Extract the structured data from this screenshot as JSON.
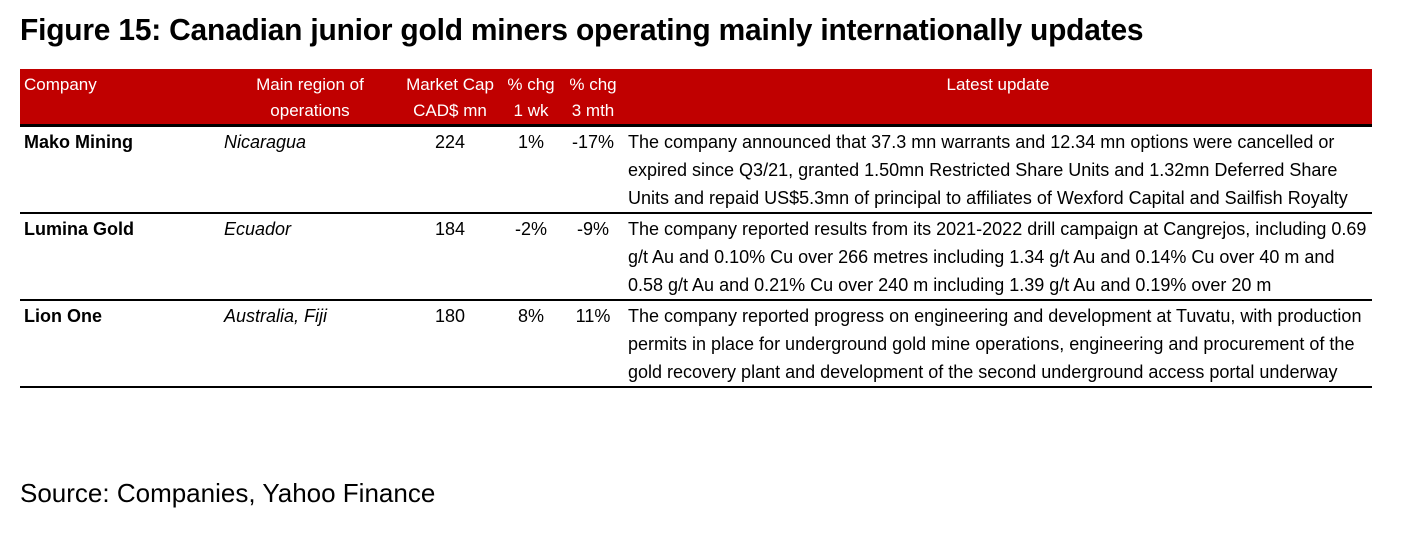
{
  "title": "Figure 15: Canadian junior gold miners operating mainly internationally updates",
  "colors": {
    "header_background": "#c00000",
    "header_text": "#ffffff",
    "rule": "#000000"
  },
  "table": {
    "headers": {
      "company": "Company",
      "region_line1": "Main region of",
      "region_line2": "operations",
      "mcap_line1": "Market Cap",
      "mcap_line2": "CAD$ mn",
      "wk_line1": "% chg",
      "wk_line2": "1 wk",
      "mth_line1": "% chg",
      "mth_line2": "3 mth",
      "update": "Latest update"
    },
    "rows": [
      {
        "company": "Mako Mining",
        "region": "Nicaragua",
        "market_cap": "224",
        "chg_1wk": "1%",
        "chg_3mth": "-17%",
        "update": "The company announced that 37.3 mn warrants and 12.34 mn options were cancelled or expired since Q3/21, granted 1.50mn Restricted Share Units and 1.32mn Deferred Share Units and repaid US$5.3mn of principal to affiliates of Wexford Capital and Sailfish Royalty"
      },
      {
        "company": "Lumina Gold",
        "region": "Ecuador",
        "market_cap": "184",
        "chg_1wk": "-2%",
        "chg_3mth": "-9%",
        "update": "The company reported results from its 2021-2022 drill campaign at Cangrejos, including 0.69 g/t Au and 0.10% Cu over 266 metres including 1.34 g/t Au and 0.14% Cu over 40 m and 0.58 g/t Au and 0.21% Cu over 240 m including 1.39 g/t Au and 0.19% over 20 m"
      },
      {
        "company": "Lion One",
        "region": "Australia, Fiji",
        "market_cap": "180",
        "chg_1wk": "8%",
        "chg_3mth": "11%",
        "update": "The company reported progress on engineering and development at Tuvatu, with production permits in place for underground gold mine operations, engineering and procurement of the gold recovery plant and development of the second underground access portal underway"
      }
    ]
  },
  "source": "Source: Companies, Yahoo Finance"
}
